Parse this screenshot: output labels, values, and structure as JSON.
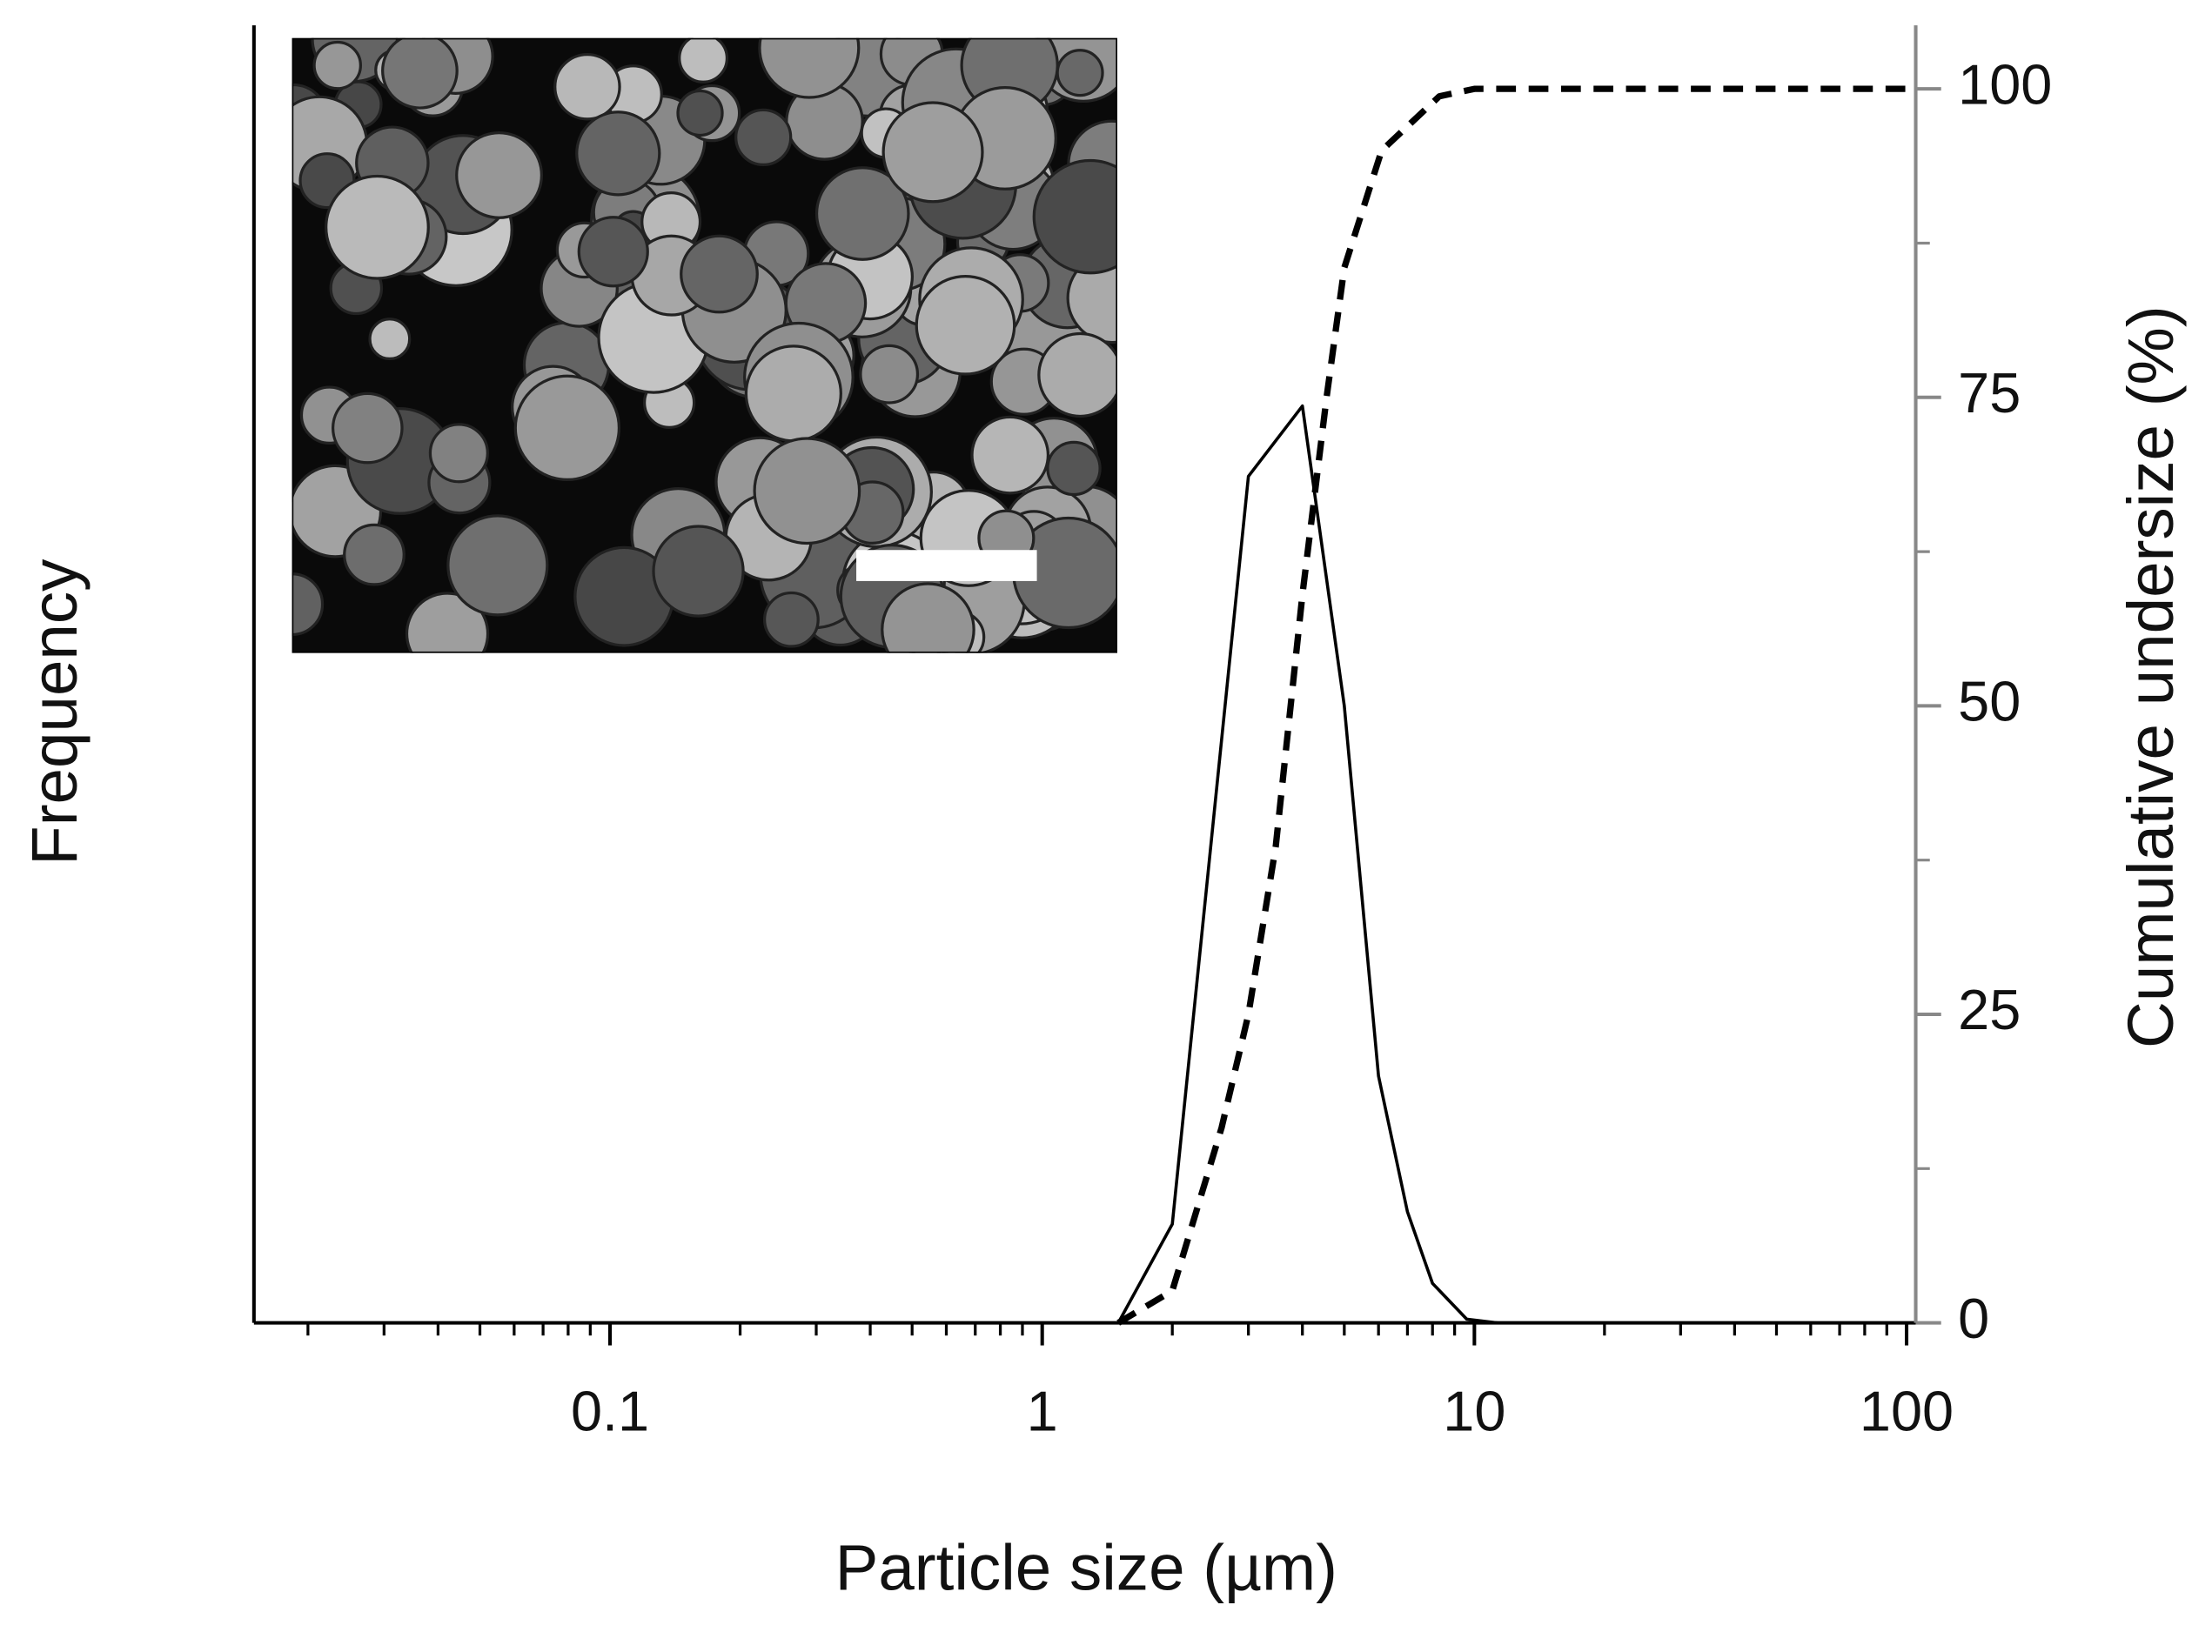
{
  "chart_data": {
    "type": "line",
    "x_label": "Particle size (µm)",
    "y_label": "Frequency",
    "y2_label": "Cumulative undersize (%)",
    "xscale": "log",
    "xlim": [
      0.015,
      105
    ],
    "xticks": [
      0.1,
      1,
      10,
      100
    ],
    "ylim": [
      0,
      100
    ],
    "y2lim": [
      0,
      100
    ],
    "y2ticks": [
      0,
      25,
      50,
      75,
      100
    ],
    "series": [
      {
        "color": "#000000",
        "dash": false,
        "x": [
          1.5,
          2,
          3,
          4,
          5,
          6,
          7,
          8,
          9.6,
          11.3
        ],
        "values": [
          0,
          8,
          68.6,
          74.3,
          50,
          20,
          9,
          3.2,
          0.3,
          0
        ]
      },
      {
        "color": "#000000",
        "dash": true,
        "axis": "y2",
        "x": [
          1.5,
          2,
          2.6,
          3,
          3.47,
          4,
          4.55,
          5,
          6.1,
          8.3,
          10,
          100
        ],
        "values": [
          0,
          2.6,
          15.8,
          25,
          38.6,
          59,
          75,
          85.5,
          95,
          99.4,
          100,
          100
        ]
      }
    ]
  }
}
